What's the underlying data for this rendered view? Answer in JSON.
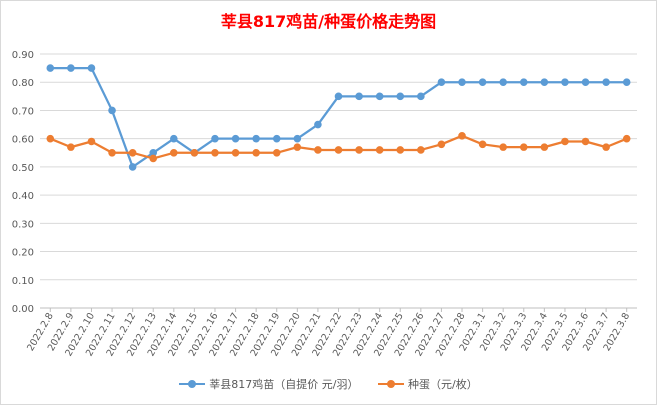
{
  "chart_data": {
    "type": "line",
    "title": "莘县817鸡苗/种蛋价格走势图",
    "xlabel": "",
    "ylabel": "",
    "ylim": [
      0,
      0.9
    ],
    "y_ticks": [
      "0.00",
      "0.10",
      "0.20",
      "0.30",
      "0.40",
      "0.50",
      "0.60",
      "0.70",
      "0.80",
      "0.90"
    ],
    "grid": true,
    "legend": "bottom",
    "categories": [
      "2022.2.8",
      "2022.2.9",
      "2022.2.10",
      "2022.2.11",
      "2022.2.12",
      "2022.2.13",
      "2022.2.14",
      "2022.2.15",
      "2022.2.16",
      "2022.2.17",
      "2022.2.18",
      "2022.2.19",
      "2022.2.20",
      "2022.2.21",
      "2022.2.22",
      "2022.2.23",
      "2022.2.24",
      "2022.2.25",
      "2022.2.26",
      "2022.2.27",
      "2022.2.28",
      "2022.3.1",
      "2022.3.2",
      "2022.3.3",
      "2022.3.4",
      "2022.3.5",
      "2022.3.6",
      "2022.3.7",
      "2022.3.8"
    ],
    "series": [
      {
        "name": "莘县817鸡苗（自提价 元/羽）",
        "color": "#5b9bd5",
        "values": [
          0.85,
          0.85,
          0.85,
          0.7,
          0.5,
          0.55,
          0.6,
          0.55,
          0.6,
          0.6,
          0.6,
          0.6,
          0.6,
          0.65,
          0.75,
          0.75,
          0.75,
          0.75,
          0.75,
          0.8,
          0.8,
          0.8,
          0.8,
          0.8,
          0.8,
          0.8,
          0.8,
          0.8,
          0.8
        ]
      },
      {
        "name": "种蛋（元/枚）",
        "color": "#ed7d31",
        "values": [
          0.6,
          0.57,
          0.59,
          0.55,
          0.55,
          0.53,
          0.55,
          0.55,
          0.55,
          0.55,
          0.55,
          0.55,
          0.57,
          0.56,
          0.56,
          0.56,
          0.56,
          0.56,
          0.56,
          0.58,
          0.61,
          0.58,
          0.57,
          0.57,
          0.57,
          0.59,
          0.59,
          0.57,
          0.6
        ]
      }
    ]
  }
}
